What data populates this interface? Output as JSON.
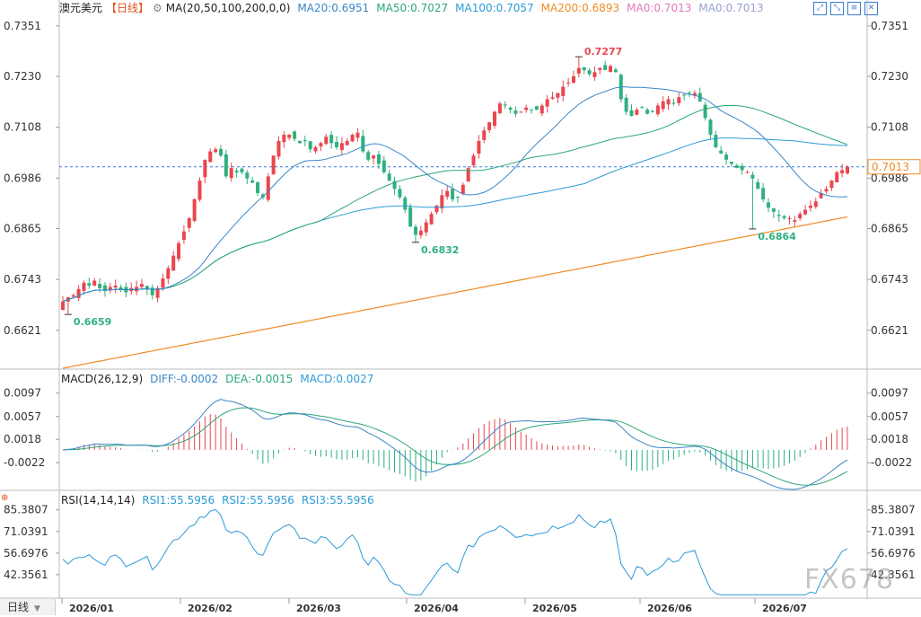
{
  "header": {
    "symbol": "澳元美元",
    "period": "【日线】",
    "ma_label": "MA(20,50,100,200,0,0)",
    "ma_values": [
      {
        "label": "MA20:0.6951",
        "color": "#3a86c8"
      },
      {
        "label": "MA50:0.7027",
        "color": "#2aa876"
      },
      {
        "label": "MA100:0.7057",
        "color": "#2b9bd6"
      },
      {
        "label": "MA200:0.6893",
        "color": "#f08c28"
      },
      {
        "label": "MA0:0.7013",
        "color": "#e07bb8"
      },
      {
        "label": "MA0:0.7013",
        "color": "#9aa0d6"
      }
    ],
    "tool_icons": [
      "expand-icon",
      "shrink-icon",
      "menu-icon",
      "close-icon"
    ]
  },
  "macd_header": {
    "label": "MACD(26,12,9)",
    "diff": "DIFF:-0.0002",
    "dea": "DEA:-0.0015",
    "macd": "MACD:0.0027"
  },
  "rsi_header": {
    "label": "RSI(14,14,14)",
    "rsi1": "RSI1:55.5956",
    "rsi2": "RSI2:55.5956",
    "rsi3": "RSI3:55.5956"
  },
  "footer": {
    "period_button": "日线",
    "x_labels": [
      "2026/01",
      "2026/02",
      "2026/03",
      "2026/04",
      "2026/05",
      "2026/06",
      "2026/07"
    ]
  },
  "watermark": "FX678",
  "colors": {
    "up": "#e9464f",
    "down": "#2fb07f",
    "ma20": "#3a86c8",
    "ma50": "#2aa876",
    "ma100": "#2b9bd6",
    "ma200": "#f08c28",
    "current": "#f08c28"
  },
  "chart_data": [
    {
      "type": "candlestick",
      "title": "澳元美元【日线】",
      "y_ticks": [
        "0.7351",
        "0.7230",
        "0.7108",
        "0.6986",
        "0.6865",
        "0.6743",
        "0.6621"
      ],
      "ylim": [
        0.653,
        0.737
      ],
      "current_price": "0.7013",
      "annotations": [
        {
          "label": "0.6659",
          "candle": 1,
          "value": 0.6659
        },
        {
          "label": "0.7277",
          "candle": 98,
          "value": 0.7277
        },
        {
          "label": "0.6832",
          "candle": 67,
          "value": 0.6832
        },
        {
          "label": "0.6864",
          "candle": 131,
          "value": 0.6864
        }
      ],
      "candle_count": 150,
      "closes": [
        0.669,
        0.67,
        0.6705,
        0.672,
        0.6735,
        0.6728,
        0.674,
        0.6722,
        0.6715,
        0.6725,
        0.6728,
        0.672,
        0.6712,
        0.6722,
        0.6725,
        0.6732,
        0.672,
        0.6705,
        0.6722,
        0.6745,
        0.677,
        0.68,
        0.683,
        0.6858,
        0.689,
        0.6935,
        0.698,
        0.703,
        0.705,
        0.7055,
        0.704,
        0.699,
        0.701,
        0.7,
        0.7,
        0.6985,
        0.6975,
        0.695,
        0.694,
        0.699,
        0.704,
        0.7075,
        0.709,
        0.709,
        0.708,
        0.707,
        0.7075,
        0.7055,
        0.706,
        0.707,
        0.7085,
        0.707,
        0.706,
        0.707,
        0.7075,
        0.709,
        0.7095,
        0.705,
        0.703,
        0.704,
        0.702,
        0.7,
        0.698,
        0.696,
        0.694,
        0.691,
        0.687,
        0.685,
        0.686,
        0.688,
        0.69,
        0.692,
        0.6945,
        0.6955,
        0.6935,
        0.694,
        0.697,
        0.701,
        0.704,
        0.7075,
        0.71,
        0.712,
        0.7145,
        0.7165,
        0.716,
        0.715,
        0.714,
        0.7145,
        0.7155,
        0.715,
        0.715,
        0.716,
        0.7175,
        0.718,
        0.719,
        0.7205,
        0.7215,
        0.723,
        0.725,
        0.7245,
        0.7235,
        0.724,
        0.725,
        0.7245,
        0.7255,
        0.724,
        0.7175,
        0.7145,
        0.7135,
        0.715,
        0.7155,
        0.714,
        0.7145,
        0.716,
        0.717,
        0.7175,
        0.7165,
        0.718,
        0.7185,
        0.719,
        0.719,
        0.717,
        0.713,
        0.709,
        0.706,
        0.7045,
        0.703,
        0.702,
        0.701,
        0.7005,
        0.7,
        0.6985,
        0.696,
        0.6935,
        0.6915,
        0.6905,
        0.6895,
        0.689,
        0.689,
        0.6885,
        0.69,
        0.691,
        0.692,
        0.693,
        0.695,
        0.696,
        0.698,
        0.7,
        0.7005,
        0.7013
      ]
    },
    {
      "type": "line",
      "title": "MACD(26,12,9)",
      "y_ticks": [
        "0.0097",
        "0.0057",
        "0.0018",
        "-0.0022"
      ],
      "ylim": [
        -0.006,
        0.0115
      ],
      "series": [
        {
          "name": "DIFF",
          "value": -0.0002
        },
        {
          "name": "DEA",
          "value": -0.0015
        },
        {
          "name": "MACD",
          "value": 0.0027
        }
      ]
    },
    {
      "type": "line",
      "title": "RSI(14,14,14)",
      "y_ticks": [
        "85.3807",
        "71.0391",
        "56.6976",
        "42.3561"
      ],
      "ylim": [
        28,
        90
      ],
      "series": [
        {
          "name": "RSI1",
          "value": 55.5956
        },
        {
          "name": "RSI2",
          "value": 55.5956
        },
        {
          "name": "RSI3",
          "value": 55.5956
        }
      ]
    }
  ]
}
